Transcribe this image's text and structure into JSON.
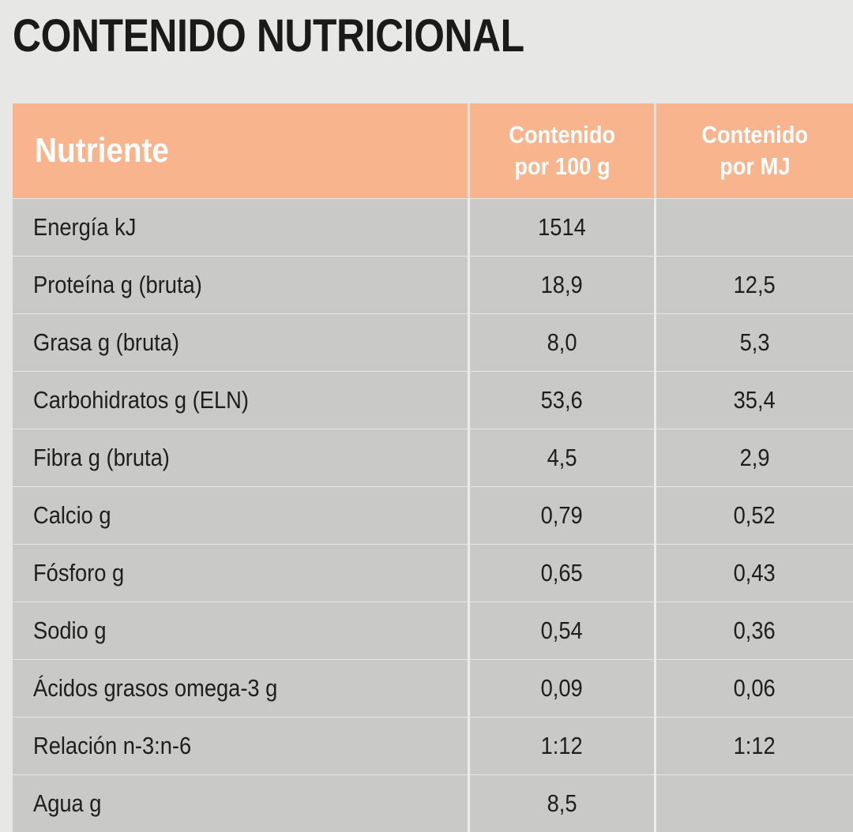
{
  "title": "CONTENIDO NUTRICIONAL",
  "table": {
    "headers": {
      "nutrient": "Nutriente",
      "per100g_line1": "Contenido",
      "per100g_line2": "por 100 g",
      "perMJ_line1": "Contenido",
      "perMJ_line2": "por MJ"
    },
    "rows": [
      {
        "name": "Energía kJ",
        "per100g": "1514",
        "perMJ": ""
      },
      {
        "name": "Proteína g (bruta)",
        "per100g": "18,9",
        "perMJ": "12,5"
      },
      {
        "name": "Grasa g (bruta)",
        "per100g": "8,0",
        "perMJ": "5,3"
      },
      {
        "name": "Carbohidratos g (ELN)",
        "per100g": "53,6",
        "perMJ": "35,4"
      },
      {
        "name": "Fibra g (bruta)",
        "per100g": "4,5",
        "perMJ": "2,9"
      },
      {
        "name": "Calcio g",
        "per100g": "0,79",
        "perMJ": "0,52"
      },
      {
        "name": "Fósforo g",
        "per100g": "0,65",
        "perMJ": "0,43"
      },
      {
        "name": "Sodio g",
        "per100g": "0,54",
        "perMJ": "0,36"
      },
      {
        "name": "Ácidos grasos omega-3 g",
        "per100g": "0,09",
        "perMJ": "0,06"
      },
      {
        "name": "Relación n-3:n-6",
        "per100g": "1:12",
        "perMJ": "1:12"
      },
      {
        "name": "Agua g",
        "per100g": "8,5",
        "perMJ": ""
      }
    ]
  },
  "colors": {
    "header_bg": "#f7b48d",
    "row_bg": "#c9c9c7",
    "page_bg": "#e7e7e5"
  }
}
